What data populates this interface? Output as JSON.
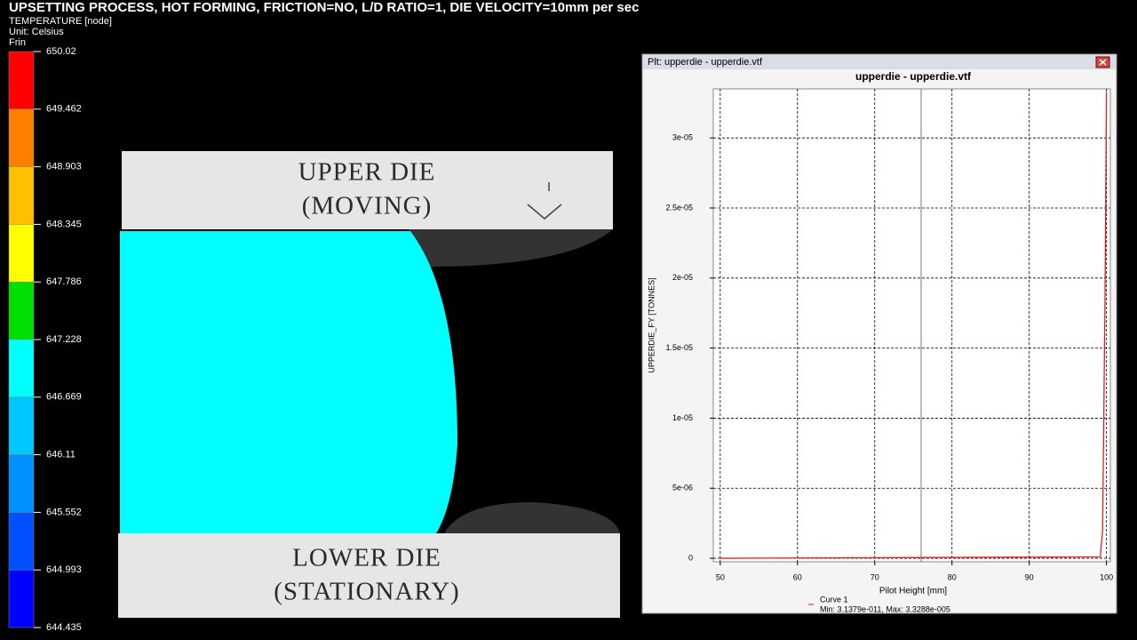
{
  "header": {
    "title": "UPSETTING PROCESS, HOT FORMING, FRICTION=NO, L/D RATIO=1, DIE VELOCITY=10mm per sec"
  },
  "legend": {
    "variable": "TEMPERATURE [node]",
    "unit": "Unit: Celsius",
    "frame": "Frin",
    "labels": [
      "650.02",
      "649.462",
      "648.903",
      "648.345",
      "647.786",
      "647.228",
      "646.669",
      "646.11",
      "645.552",
      "644.993",
      "644.435"
    ]
  },
  "model": {
    "upper_die": [
      "UPPER DIE",
      "(MOVING)"
    ],
    "lower_die": [
      "LOWER DIE",
      "(STATIONARY)"
    ]
  },
  "plot_window": {
    "window_title": "Plt: upperdie - upperdie.vtf",
    "chart_data": {
      "type": "line",
      "title": "upperdie - upperdie.vtf",
      "y_label": "UPPERDIE_FY [TONNES]",
      "x_label": "Pilot Height [mm]",
      "xlim": [
        49.1,
        100.5
      ],
      "ylim": [
        -2.5e-07,
        3.35e-05
      ],
      "xticks": [
        50,
        60,
        70,
        80,
        90,
        100
      ],
      "yticks": [
        0,
        {
          "value": 5e-06,
          "label": "5e-06"
        },
        {
          "value": 1e-05,
          "label": "1e-05"
        },
        {
          "value": 1.5e-05,
          "label": "1.5e-05"
        },
        {
          "value": 2e-05,
          "label": "2e-05"
        },
        {
          "value": 2.5e-05,
          "label": "2.5e-05"
        },
        {
          "value": 3e-05,
          "label": "3e-05"
        }
      ],
      "grid": true,
      "series": [
        {
          "name": "Curve 1",
          "color": "#e02020",
          "x": [
            50,
            99.2,
            99.5,
            99.8,
            100
          ],
          "values": [
            3.1379e-11,
            1e-07,
            2e-06,
            1.8e-05,
            3.3288e-05
          ]
        }
      ],
      "legend_note": "Min: 3.1379e-011, Max: 3.3288e-005"
    }
  }
}
